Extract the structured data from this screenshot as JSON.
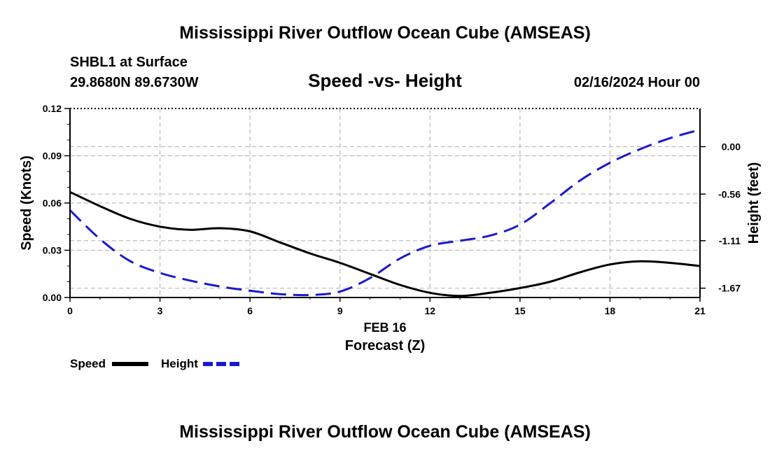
{
  "header": {
    "title": "Mississippi River Outflow Ocean Cube (AMSEAS)",
    "station": "SHBL1 at Surface",
    "location": "29.8680N  89.6730W",
    "date": "02/16/2024 Hour 00"
  },
  "footer": {
    "title": "Mississippi River Outflow Ocean Cube (AMSEAS)"
  },
  "chart_data": {
    "type": "line",
    "title": "Speed -vs- Height",
    "xlabel": "Forecast (Z)",
    "xsublabel": "FEB 16",
    "ylabel": "Speed (Knots)",
    "y2label": "Height (feet)",
    "xlim": [
      0,
      21
    ],
    "ylim": [
      0,
      0.12
    ],
    "y2lim": [
      -1.78,
      0.45
    ],
    "x_ticks": [
      0,
      3,
      6,
      9,
      12,
      15,
      18,
      21
    ],
    "x_tick_labels": [
      "0",
      "3",
      "6",
      "9",
      "12",
      "15",
      "18",
      "21"
    ],
    "y_ticks": [
      0,
      0.03,
      0.06,
      0.09,
      0.12
    ],
    "y_tick_labels": [
      "0.00",
      "0.03",
      "0.06",
      "0.09",
      "0.12"
    ],
    "y2_ticks": [
      0.0,
      -0.56,
      -1.11,
      -1.67
    ],
    "y2_tick_labels": [
      "0.00",
      "-0.56",
      "-1.11",
      "-1.67"
    ],
    "grid": true,
    "colors": {
      "speed": "#000000",
      "height": "#1a1acc",
      "grid": "#bbbbbb"
    },
    "series": [
      {
        "name": "Speed",
        "axis": "left",
        "style": "solid",
        "x": [
          0,
          1,
          2,
          3,
          4,
          5,
          6,
          7,
          8,
          9,
          10,
          11,
          12,
          13,
          14,
          15,
          16,
          17,
          18,
          19,
          20,
          21
        ],
        "values": [
          0.067,
          0.058,
          0.05,
          0.045,
          0.043,
          0.044,
          0.042,
          0.035,
          0.028,
          0.022,
          0.015,
          0.008,
          0.003,
          0.001,
          0.003,
          0.006,
          0.01,
          0.016,
          0.021,
          0.023,
          0.022,
          0.02
        ]
      },
      {
        "name": "Height",
        "axis": "right",
        "style": "dashed",
        "x": [
          0,
          1,
          2,
          3,
          4,
          5,
          6,
          7,
          8,
          9,
          10,
          11,
          12,
          13,
          14,
          15,
          16,
          17,
          18,
          19,
          20,
          21
        ],
        "values": [
          -0.75,
          -1.09,
          -1.35,
          -1.49,
          -1.58,
          -1.65,
          -1.7,
          -1.74,
          -1.75,
          -1.71,
          -1.55,
          -1.32,
          -1.17,
          -1.11,
          -1.05,
          -0.92,
          -0.67,
          -0.4,
          -0.19,
          -0.03,
          0.1,
          0.2
        ]
      }
    ],
    "legend": [
      {
        "label": "Speed",
        "series": "Speed"
      },
      {
        "label": "Height",
        "series": "Height"
      }
    ]
  }
}
